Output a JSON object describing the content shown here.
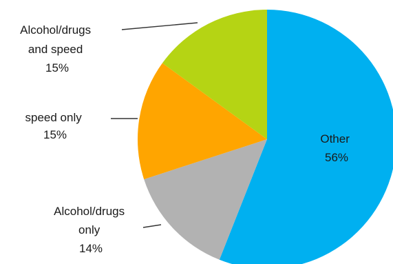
{
  "chart_data": {
    "type": "pie",
    "title": "",
    "start_angle_deg": 0,
    "direction": "clockwise",
    "slices": [
      {
        "label_lines": [
          "Other"
        ],
        "value_text": "56%",
        "value": 56,
        "color": "#00b0f0"
      },
      {
        "label_lines": [
          "Alcohol/drugs",
          "only"
        ],
        "value_text": "14%",
        "value": 14,
        "color": "#b2b2b2"
      },
      {
        "label_lines": [
          "speed only"
        ],
        "value_text": "15%",
        "value": 15,
        "color": "#ffa500"
      },
      {
        "label_lines": [
          "Alcohol/drugs",
          "and speed"
        ],
        "value_text": "15%",
        "value": 15,
        "color": "#b5d414"
      }
    ],
    "legend": "none",
    "labels": "outside-with-leader-lines"
  }
}
